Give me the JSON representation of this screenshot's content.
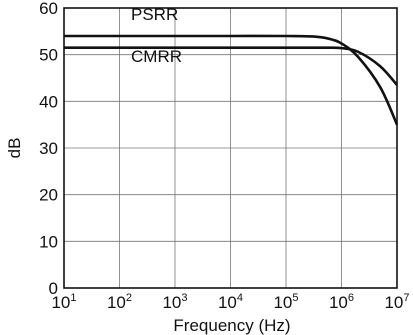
{
  "chart_data": {
    "type": "line",
    "xlabel": "Frequency (Hz)",
    "ylabel": "dB",
    "xscale": "log",
    "xlim": [
      10,
      10000000
    ],
    "ylim": [
      0,
      60
    ],
    "grid": true,
    "x_ticks": [
      {
        "base": "10",
        "exp": "1"
      },
      {
        "base": "10",
        "exp": "2"
      },
      {
        "base": "10",
        "exp": "3"
      },
      {
        "base": "10",
        "exp": "4"
      },
      {
        "base": "10",
        "exp": "5"
      },
      {
        "base": "10",
        "exp": "6"
      },
      {
        "base": "10",
        "exp": "7"
      }
    ],
    "y_ticks": [
      "0",
      "10",
      "20",
      "30",
      "40",
      "50",
      "60"
    ],
    "series": [
      {
        "name": "PSRR",
        "x": [
          10,
          100,
          1000,
          10000,
          100000,
          300000,
          600000,
          1000000,
          2000000,
          5000000,
          10000000
        ],
        "y": [
          54,
          54,
          54,
          54,
          54,
          53.9,
          53.4,
          52.4,
          49.5,
          43,
          35
        ]
      },
      {
        "name": "CMRR",
        "x": [
          10,
          100,
          1000,
          10000,
          100000,
          500000,
          1000000,
          2000000,
          5000000,
          10000000
        ],
        "y": [
          51.5,
          51.5,
          51.5,
          51.5,
          51.5,
          51.5,
          51.4,
          50.6,
          47.5,
          43.5
        ]
      }
    ]
  }
}
